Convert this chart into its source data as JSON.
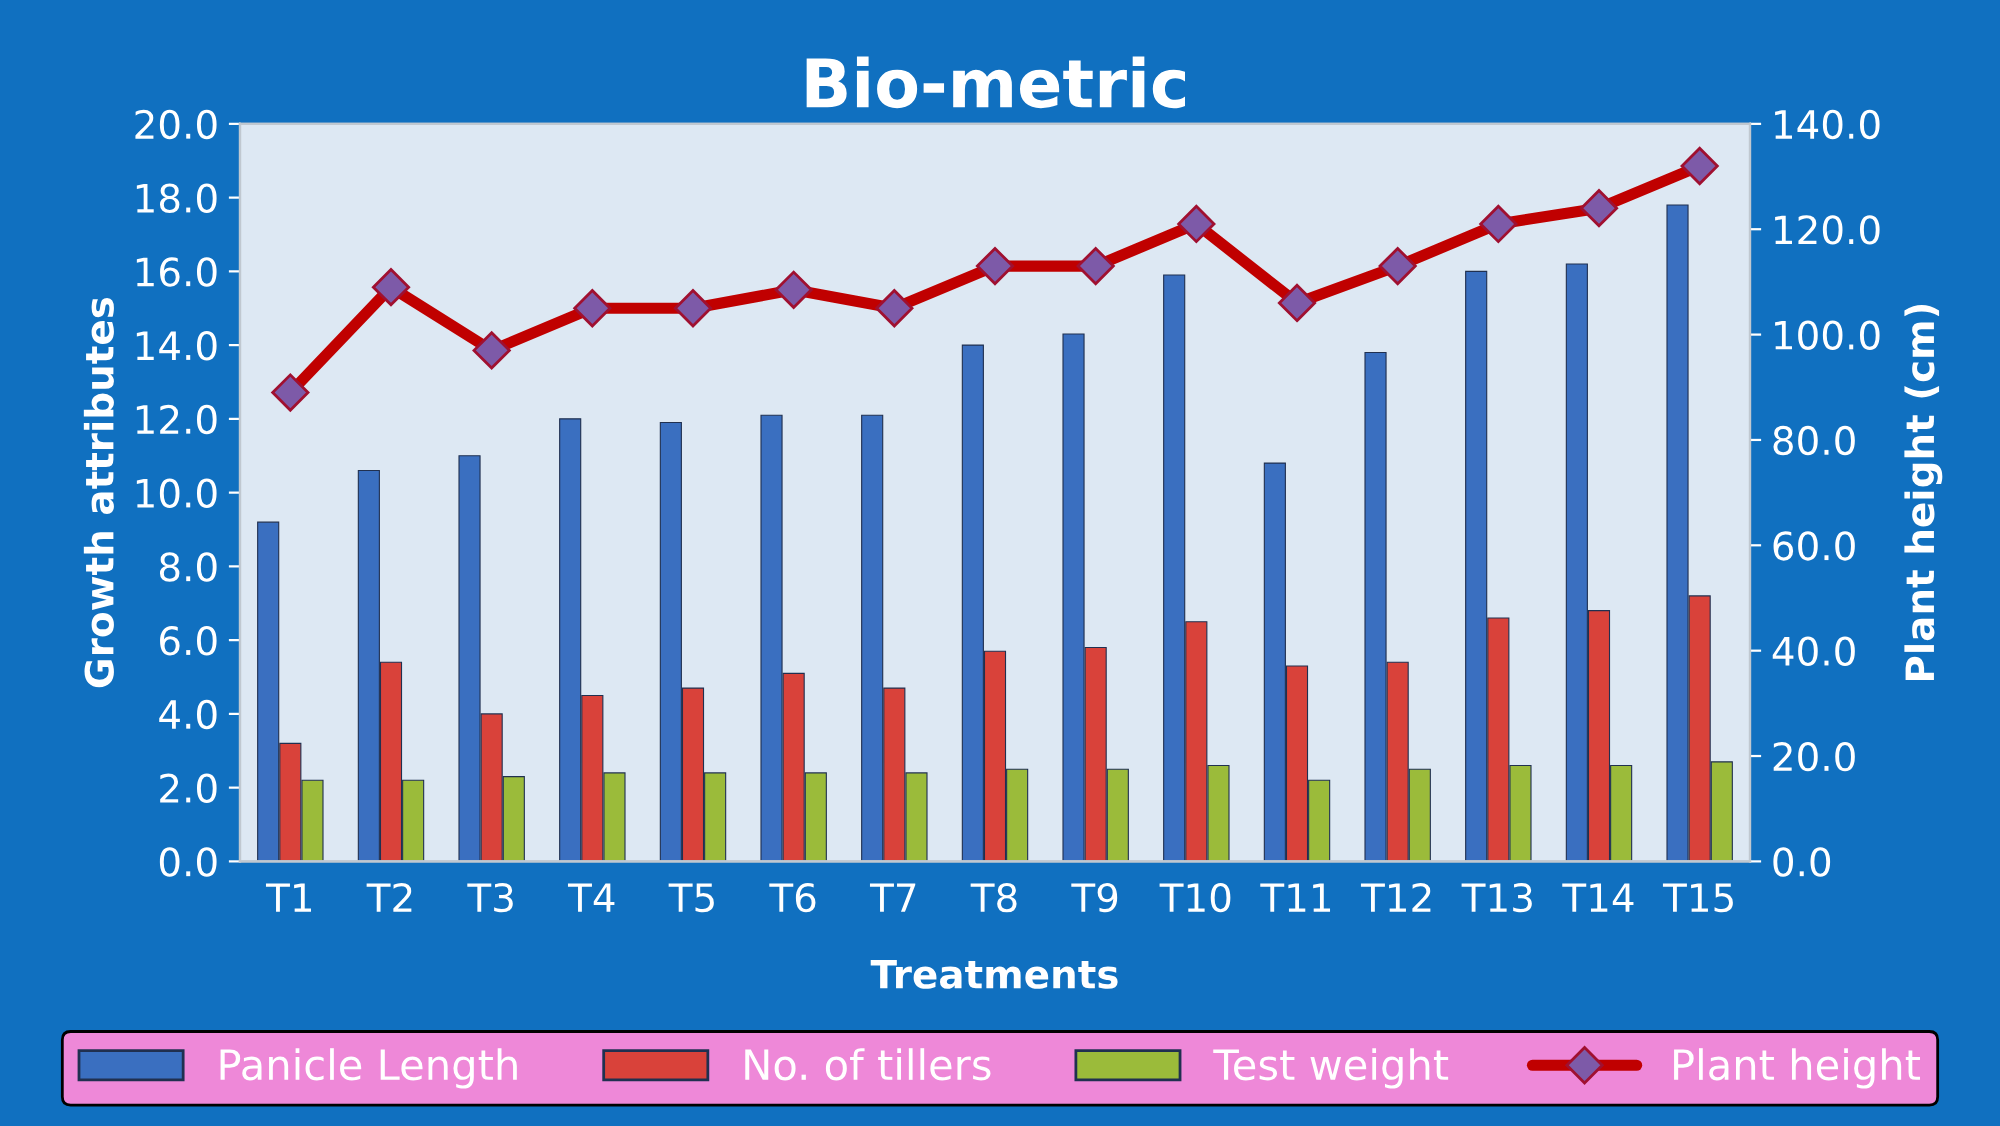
{
  "chart_data": {
    "type": "bar",
    "title": "Bio-metric",
    "xlabel": "Treatments",
    "ylabel": "Growth attributes",
    "y2label": "Plant height (cm)",
    "categories": [
      "T1",
      "T2",
      "T3",
      "T4",
      "T5",
      "T6",
      "T7",
      "T8",
      "T9",
      "T10",
      "T11",
      "T12",
      "T13",
      "T14",
      "T15"
    ],
    "series": [
      {
        "name": "Panicle Length",
        "color": "#3a6fc0",
        "values": [
          9.2,
          10.6,
          11.0,
          12.0,
          11.9,
          12.1,
          12.1,
          14.0,
          14.3,
          15.9,
          10.8,
          13.8,
          16.0,
          16.2,
          17.8
        ]
      },
      {
        "name": "No. of tillers",
        "color": "#d9423a",
        "values": [
          3.2,
          5.4,
          4.0,
          4.5,
          4.7,
          5.1,
          4.7,
          5.7,
          5.8,
          6.5,
          5.3,
          5.4,
          6.6,
          6.8,
          7.2
        ]
      },
      {
        "name": "Test weight",
        "color": "#9bbb3a",
        "values": [
          2.2,
          2.2,
          2.3,
          2.4,
          2.4,
          2.4,
          2.4,
          2.5,
          2.5,
          2.6,
          2.2,
          2.5,
          2.6,
          2.6,
          2.7
        ]
      },
      {
        "name": "Plant height",
        "type": "line",
        "axis": "y2",
        "color": "#c00000",
        "marker": "diamond",
        "values": [
          89,
          109,
          97,
          105,
          105,
          108.5,
          105,
          113,
          113,
          121,
          106,
          113,
          121,
          124,
          132
        ]
      }
    ],
    "ylim": [
      0,
      20
    ],
    "yticks": [
      {
        "value": 0,
        "label": "0.0"
      },
      {
        "value": 2,
        "label": "2.0"
      },
      {
        "value": 4,
        "label": "4.0"
      },
      {
        "value": 6,
        "label": "6.0"
      },
      {
        "value": 8,
        "label": "8.0"
      },
      {
        "value": 10,
        "label": "10.0"
      },
      {
        "value": 12,
        "label": "12.0"
      },
      {
        "value": 14,
        "label": "14.0"
      },
      {
        "value": 16,
        "label": "16.0"
      },
      {
        "value": 18,
        "label": "18.0"
      },
      {
        "value": 20,
        "label": "20.0"
      }
    ],
    "y2lim": [
      0,
      140
    ],
    "y2ticks": [
      {
        "value": 0,
        "label": "0.0"
      },
      {
        "value": 20,
        "label": "20.0"
      },
      {
        "value": 40,
        "label": "40.0"
      },
      {
        "value": 60,
        "label": "60.0"
      },
      {
        "value": 80,
        "label": "80.0"
      },
      {
        "value": 100,
        "label": "100.0"
      },
      {
        "value": 120,
        "label": "120.0"
      },
      {
        "value": 140,
        "label": "140.0"
      }
    ],
    "grid": false,
    "legend": "bottom"
  }
}
